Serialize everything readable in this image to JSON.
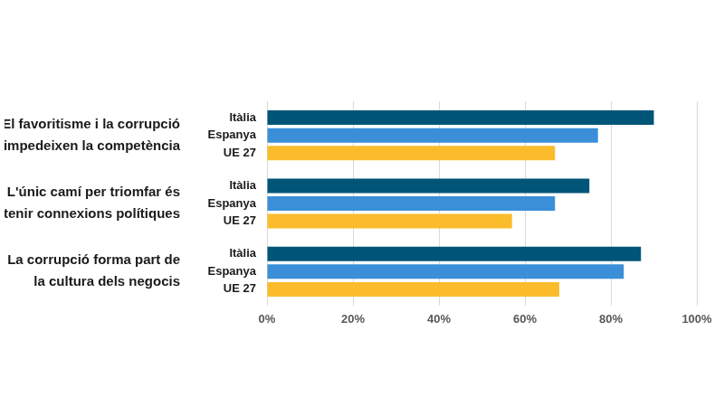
{
  "chart_data": {
    "type": "bar",
    "orientation": "horizontal",
    "grid": true,
    "categories": [
      "El favoritisme i la corrupció impedeixen la competència",
      "L'únic camí per triomfar és tenir connexions polítiques",
      "La corrupció forma part de la cultura dels negocis"
    ],
    "series": [
      {
        "name": "Itàlia",
        "color": "#005578",
        "values": [
          90,
          75,
          87
        ]
      },
      {
        "name": "Espanya",
        "color": "#3a8fd8",
        "values": [
          77,
          67,
          83
        ]
      },
      {
        "name": "UE 27",
        "color": "#fbbc2c",
        "values": [
          67,
          57,
          68
        ]
      }
    ],
    "xlim": [
      0,
      100
    ],
    "xticks": [
      {
        "value": 0,
        "label": "0%"
      },
      {
        "value": 20,
        "label": "20%"
      },
      {
        "value": 40,
        "label": "40%"
      },
      {
        "value": 60,
        "label": "60%"
      },
      {
        "value": 80,
        "label": "80%"
      },
      {
        "value": 100,
        "label": "100%"
      }
    ]
  }
}
